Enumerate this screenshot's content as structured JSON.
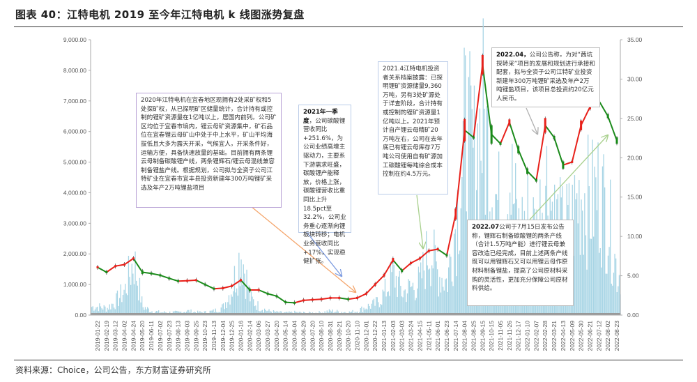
{
  "title": "图表 40：江特电机 2019 至今年江特电机 k 线图涨势复盘",
  "source": "资料来源：Choice，公司公告，东方财富证券研究所",
  "colors": {
    "up": "#e8201a",
    "down": "#1a8a1a",
    "volume": "#a8d5e5",
    "axis": "#aaaaaa",
    "box1": "#b9a3d6",
    "box2": "#b9cbe8",
    "box3": "#b9cbe8",
    "box4": "#bbbbbb",
    "box5": "#bbbbbb",
    "arrow1": "#f4a46a",
    "arrow2": "#7d9be0",
    "arrow3": "#a8d08d",
    "arrow4": "#b0b0b0",
    "arrow5": "#a8d08d"
  },
  "annotations": [
    {
      "bold": "",
      "text": "2020年江特电机在宜春地区现拥有2处采矿权和5处探矿权，从已探明矿区储量统计，合计持有或控制的锂矿资源量在1亿吨以上，居国内前列。公司矿区均位于宜春市境内，锂云母矿资源集中，矿石品位在宜春锂云母矿山中处于中上水平，矿山平均海拔低且大多为露天开采，气候宜人，开采条件好，运输方便，具备快速放量的基础。目前拥有两条锂云母制备碳酸锂产线，两条锂辉石/锂云母混线兼容制备锂盐产线。根据规划，公司拟与全资子公司江特矿业在宜春市宜丰县投资新建年300万吨锂矿采选及年产2万吨锂盐项目"
    },
    {
      "bold": "2021年一季度",
      "text": "，公司碳酸锂营收同比+251.6%，为公司业绩高增主驱动力，主要系下游需求旺盛，碳酸锂产能释放，价格上涨，碳酸锂营收比重同比上升18.5pct至32.2%，公司业务重心逐渐向锂板块转移；电机业务营收同比+17%，实现稳健扩张。"
    },
    {
      "bold": "",
      "text": "2021.4江特电机投资者关系档案披露：已探明锂矿资源储量9,360万吨，另有3处矿源处于详查阶段，合计持有或控制的锂矿资源量1亿吨以上。2021年预计自产锂云母精矿20万吨左右，公司在去年底已有锂云母库存7万吨公司使用自有矿源加工碳酸锂每吨综合成本控制在约4.5万元。"
    },
    {
      "bold": "2022.04，",
      "text": "公司公告称，为对“茜坑探转采”项目的发展和规划进行承接和配套，拟与全资子公司江特矿业投资新建年300万吨锂矿采选及年产2万吨锂盐项目，该项目总投资约20亿元人民币。"
    },
    {
      "bold": "2022.07",
      "text": "公司于7月15日发布公告称，锂辉石制备碳酸锂的两条产线（合计1.5万吨产能）进行锂云母兼容改造已经完成，目前上述两条产线既可以用锂辉石又可以用锂云母作原材料制备锂盐，提高了公司原材料采购的灵活性，更加充分保障公司原材料供给。"
    }
  ],
  "chart_data": {
    "type": "candlestick+bar",
    "title": "",
    "x_tick_labels": [
      "2019-01-22",
      "2019-02-19",
      "2019-03-12",
      "2019-04-02",
      "2019-04-24",
      "2019-05-20",
      "2019-06-11",
      "2019-07-02",
      "2019-07-23",
      "2019-08-13",
      "2019-09-03",
      "2019-09-25",
      "2019-10-23",
      "2019-11-13",
      "2019-12-04",
      "2019-12-25",
      "2020-01-16",
      "2020-02-14",
      "2020-03-06",
      "2020-03-27",
      "2020-04-20",
      "2020-05-14",
      "2020-06-04",
      "2020-06-29",
      "2020-07-20",
      "2020-08-10",
      "2020-08-31",
      "2020-09-21",
      "2020-10-20",
      "2020-11-10",
      "2020-12-01",
      "2020-12-22",
      "2021-01-13",
      "2021-02-03",
      "2021-03-03",
      "2021-03-24",
      "2021-04-15",
      "2021-05-11",
      "2021-06-01",
      "2021-06-23",
      "2021-07-14",
      "2021-08-04",
      "2021-08-25",
      "2021-09-15",
      "2021-10-15",
      "2021-11-05",
      "2021-11-26",
      "2021-12-17",
      "2022-01-10",
      "2022-02-07",
      "2022-02-28",
      "2022-03-21",
      "2022-04-13",
      "2022-05-09",
      "2022-05-30",
      "2022-06-21",
      "2022-07-12",
      "2022-08-02",
      "2022-08-23"
    ],
    "left_axis": {
      "ylim": [
        0,
        9000
      ],
      "ticks": [
        "0.00",
        "1,000.00",
        "2,000.00",
        "3,000.00",
        "4,000.00",
        "5,000.00",
        "6,000.00",
        "7,000.00",
        "8,000.00",
        "9,000.00"
      ]
    },
    "right_axis": {
      "ylim": [
        0,
        35
      ],
      "ticks": [
        "0.00",
        "5.00",
        "10.00",
        "15.00",
        "20.00",
        "25.00",
        "30.00",
        "35.00"
      ]
    },
    "price_right_axis": [
      6.07,
      5.45,
      6.23,
      6.42,
      7.2,
      5.45,
      5.29,
      5.06,
      4.67,
      4.32,
      4.36,
      4.44,
      3.89,
      3.35,
      3.42,
      3.7,
      4.44,
      3.19,
      3.19,
      2.72,
      2.41,
      1.63,
      1.56,
      1.87,
      1.95,
      2.02,
      2.18,
      2.18,
      2.02,
      2.18,
      2.72,
      3.89,
      5.06,
      7.0,
      5.64,
      6.61,
      7.2,
      8.17,
      8.37,
      7.59,
      12.84,
      23.5,
      22.57,
      31.83,
      22.96,
      21.79,
      24.51,
      21.01,
      18.29,
      17.12,
      24.12,
      22.57,
      19.07,
      19.46,
      24.12,
      26.46,
      27.24,
      25.29,
      22.18
    ],
    "volume_left_axis": [
      300,
      250,
      500,
      900,
      2000,
      300,
      150,
      100,
      100,
      100,
      150,
      100,
      100,
      150,
      300,
      1000,
      2300,
      600,
      300,
      150,
      100,
      80,
      100,
      80,
      80,
      100,
      150,
      120,
      100,
      150,
      300,
      400,
      800,
      1500,
      800,
      1000,
      1200,
      2500,
      1500,
      1200,
      3500,
      6500,
      5500,
      7000,
      5000,
      3500,
      5000,
      3000,
      3500,
      3000,
      5000,
      3500,
      3000,
      3500,
      4500,
      4000,
      4500,
      3500,
      1500
    ],
    "grid": false,
    "legend": "none"
  }
}
